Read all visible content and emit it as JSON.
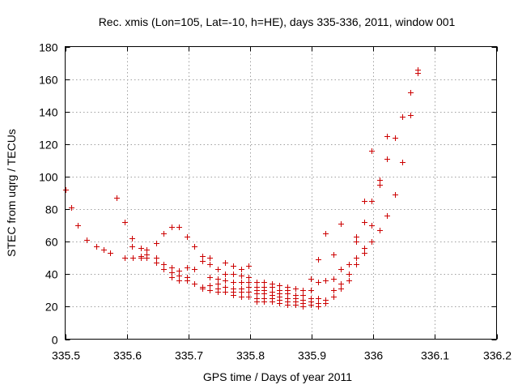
{
  "chart_data": {
    "type": "scatter",
    "title": "Rec. xmis (Lon=105, Lat=-10, h=HE), days 335-336, 2011, window 001",
    "xlabel": "GPS time / Days of year 2011",
    "ylabel": "STEC from uqrg / TECUs",
    "xlim": [
      335.5,
      336.2
    ],
    "ylim": [
      0,
      180
    ],
    "grid": true,
    "marker": "+",
    "marker_color": "#cc0000",
    "x_ticks": [
      335.5,
      335.6,
      335.7,
      335.8,
      335.9,
      336.0,
      336.1,
      336.2
    ],
    "x_tick_labels": [
      "335.5",
      "335.6",
      "335.7",
      "335.8",
      "335.9",
      "336",
      "336.1",
      "336.2"
    ],
    "y_ticks": [
      0,
      20,
      40,
      60,
      80,
      100,
      120,
      140,
      160,
      180
    ],
    "y_tick_labels": [
      "0",
      "20",
      "40",
      "60",
      "80",
      "100",
      "120",
      "140",
      "160",
      "180"
    ],
    "points": [
      [
        335.5,
        92
      ],
      [
        335.51,
        81
      ],
      [
        335.52,
        70
      ],
      [
        335.535,
        61
      ],
      [
        335.55,
        57
      ],
      [
        335.563,
        55
      ],
      [
        335.583,
        87
      ],
      [
        335.573,
        53
      ],
      [
        335.597,
        72
      ],
      [
        335.597,
        50
      ],
      [
        335.608,
        62
      ],
      [
        335.608,
        57
      ],
      [
        335.61,
        50
      ],
      [
        335.623,
        56
      ],
      [
        335.623,
        51
      ],
      [
        335.623,
        50
      ],
      [
        335.632,
        55
      ],
      [
        335.632,
        52
      ],
      [
        335.632,
        50
      ],
      [
        335.648,
        59
      ],
      [
        335.648,
        50
      ],
      [
        335.648,
        47
      ],
      [
        335.66,
        65
      ],
      [
        335.66,
        46
      ],
      [
        335.66,
        43
      ],
      [
        335.673,
        69
      ],
      [
        335.673,
        44
      ],
      [
        335.673,
        41
      ],
      [
        335.673,
        38
      ],
      [
        335.685,
        69
      ],
      [
        335.685,
        42
      ],
      [
        335.685,
        39
      ],
      [
        335.685,
        36
      ],
      [
        335.698,
        63
      ],
      [
        335.698,
        44
      ],
      [
        335.698,
        38
      ],
      [
        335.698,
        36
      ],
      [
        335.71,
        57
      ],
      [
        335.71,
        43
      ],
      [
        335.71,
        34
      ],
      [
        335.722,
        51
      ],
      [
        335.722,
        48
      ],
      [
        335.722,
        32
      ],
      [
        335.722,
        31
      ],
      [
        335.735,
        50
      ],
      [
        335.735,
        46
      ],
      [
        335.735,
        38
      ],
      [
        335.735,
        33
      ],
      [
        335.735,
        30
      ],
      [
        335.748,
        43
      ],
      [
        335.748,
        37
      ],
      [
        335.748,
        34
      ],
      [
        335.748,
        31
      ],
      [
        335.748,
        29
      ],
      [
        335.76,
        47
      ],
      [
        335.76,
        40
      ],
      [
        335.76,
        36
      ],
      [
        335.76,
        32
      ],
      [
        335.76,
        29
      ],
      [
        335.772,
        45
      ],
      [
        335.772,
        40
      ],
      [
        335.772,
        35
      ],
      [
        335.772,
        31
      ],
      [
        335.772,
        29
      ],
      [
        335.772,
        27
      ],
      [
        335.785,
        43
      ],
      [
        335.785,
        39
      ],
      [
        335.785,
        35
      ],
      [
        335.785,
        31
      ],
      [
        335.785,
        29
      ],
      [
        335.785,
        26
      ],
      [
        335.797,
        45
      ],
      [
        335.797,
        38
      ],
      [
        335.797,
        35
      ],
      [
        335.797,
        32
      ],
      [
        335.797,
        29
      ],
      [
        335.797,
        26
      ],
      [
        335.81,
        35
      ],
      [
        335.81,
        32
      ],
      [
        335.81,
        30
      ],
      [
        335.81,
        28
      ],
      [
        335.81,
        25
      ],
      [
        335.81,
        23
      ],
      [
        335.822,
        35
      ],
      [
        335.822,
        32
      ],
      [
        335.822,
        30
      ],
      [
        335.822,
        28
      ],
      [
        335.822,
        25
      ],
      [
        335.822,
        23
      ],
      [
        335.835,
        34
      ],
      [
        335.835,
        32
      ],
      [
        335.835,
        29
      ],
      [
        335.835,
        27
      ],
      [
        335.835,
        25
      ],
      [
        335.835,
        23
      ],
      [
        335.848,
        33
      ],
      [
        335.848,
        30
      ],
      [
        335.848,
        28
      ],
      [
        335.848,
        26
      ],
      [
        335.848,
        24
      ],
      [
        335.848,
        22
      ],
      [
        335.86,
        32
      ],
      [
        335.86,
        30
      ],
      [
        335.86,
        28
      ],
      [
        335.86,
        25
      ],
      [
        335.86,
        23
      ],
      [
        335.86,
        21
      ],
      [
        335.873,
        31
      ],
      [
        335.873,
        27
      ],
      [
        335.873,
        25
      ],
      [
        335.873,
        23
      ],
      [
        335.873,
        21
      ],
      [
        335.885,
        30
      ],
      [
        335.885,
        27
      ],
      [
        335.885,
        24
      ],
      [
        335.885,
        22
      ],
      [
        335.885,
        20
      ],
      [
        335.898,
        37
      ],
      [
        335.898,
        30
      ],
      [
        335.898,
        25
      ],
      [
        335.898,
        23
      ],
      [
        335.898,
        21
      ],
      [
        335.91,
        49
      ],
      [
        335.91,
        35
      ],
      [
        335.91,
        25
      ],
      [
        335.91,
        22
      ],
      [
        335.91,
        20
      ],
      [
        335.922,
        65
      ],
      [
        335.922,
        36
      ],
      [
        335.922,
        24
      ],
      [
        335.922,
        22
      ],
      [
        335.935,
        52
      ],
      [
        335.935,
        37
      ],
      [
        335.935,
        30
      ],
      [
        335.935,
        26
      ],
      [
        335.947,
        71
      ],
      [
        335.947,
        43
      ],
      [
        335.947,
        34
      ],
      [
        335.947,
        31
      ],
      [
        335.96,
        46
      ],
      [
        335.96,
        40
      ],
      [
        335.96,
        36
      ],
      [
        335.972,
        63
      ],
      [
        335.972,
        60
      ],
      [
        335.972,
        50
      ],
      [
        335.972,
        46
      ],
      [
        335.985,
        85
      ],
      [
        335.985,
        72
      ],
      [
        335.985,
        56
      ],
      [
        335.985,
        53
      ],
      [
        335.997,
        116
      ],
      [
        335.997,
        85
      ],
      [
        335.997,
        70
      ],
      [
        335.997,
        60
      ],
      [
        336.01,
        98
      ],
      [
        336.01,
        95
      ],
      [
        336.01,
        67
      ],
      [
        336.022,
        125
      ],
      [
        336.022,
        111
      ],
      [
        336.022,
        76
      ],
      [
        336.035,
        124
      ],
      [
        336.035,
        89
      ],
      [
        336.047,
        137
      ],
      [
        336.047,
        109
      ],
      [
        336.06,
        152
      ],
      [
        336.06,
        138
      ],
      [
        336.072,
        166
      ],
      [
        336.072,
        164
      ]
    ]
  }
}
